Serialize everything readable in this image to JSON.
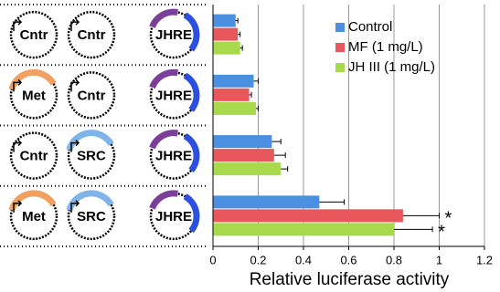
{
  "chart_data": {
    "type": "barh",
    "xlabel": "Relative luciferase activity",
    "categories": [
      null,
      null,
      null,
      null
    ],
    "series": [
      {
        "name": "Control",
        "color": "#4a8fe0",
        "values": [
          0.1,
          0.18,
          0.26,
          0.47
        ],
        "errors": [
          0.01,
          0.02,
          0.04,
          0.11
        ]
      },
      {
        "name": "MF (1 mg/L)",
        "color": "#e8575c",
        "values": [
          0.11,
          0.16,
          0.27,
          0.84
        ],
        "errors": [
          0.01,
          0.01,
          0.05,
          0.16
        ]
      },
      {
        "name": "JH III (1 mg/L)",
        "color": "#a8d84c",
        "values": [
          0.12,
          0.19,
          0.3,
          0.8
        ],
        "errors": [
          0.01,
          0.01,
          0.03,
          0.17
        ]
      }
    ],
    "annotations": [
      "*",
      "*"
    ],
    "xlim": [
      0,
      1.2
    ],
    "xticks": [
      0,
      0.2,
      0.4,
      0.6,
      0.8,
      1,
      1.2
    ],
    "grid": true,
    "legend": "upper right"
  },
  "diagram": {
    "rows": [
      [
        {
          "label": "Cntr"
        },
        {
          "label": "Cntr"
        },
        {
          "label": "JHRE",
          "color": "#2c4fe0"
        }
      ],
      [
        {
          "label": "Met",
          "color": "#f0a060"
        },
        {
          "label": "Cntr"
        },
        {
          "label": "JHRE",
          "color": "#2c4fe0"
        }
      ],
      [
        {
          "label": "Cntr"
        },
        {
          "label": "SRC",
          "color": "#80b4e8"
        },
        {
          "label": "JHRE",
          "color": "#2c4fe0"
        }
      ],
      [
        {
          "label": "Met",
          "color": "#f0a060"
        },
        {
          "label": "SRC",
          "color": "#80b4e8"
        },
        {
          "label": "JHRE",
          "color": "#2c4fe0"
        }
      ]
    ]
  }
}
